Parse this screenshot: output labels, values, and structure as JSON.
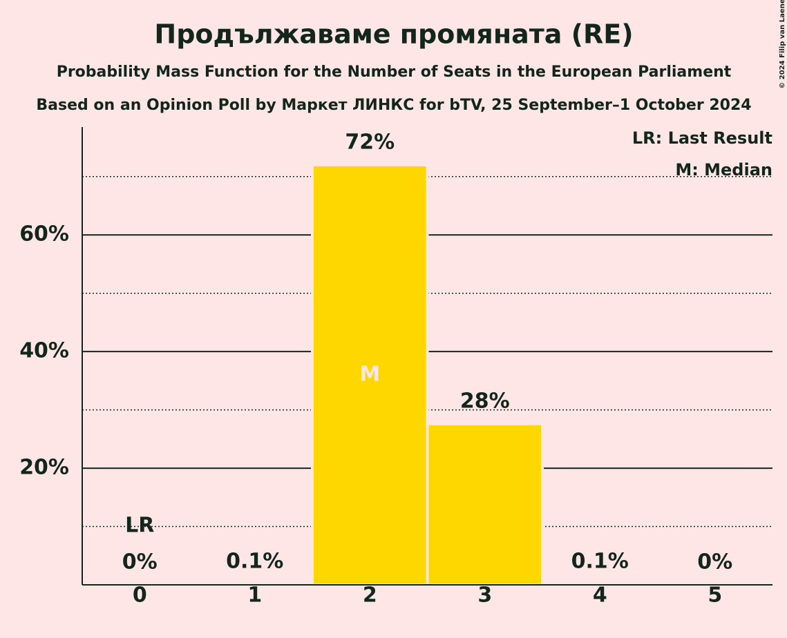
{
  "chart_data": {
    "type": "bar",
    "title": "Продължаваме промяната (RE)",
    "subtitle": "Probability Mass Function for the Number of Seats in the European Parliament",
    "subtitle2": "Based on an Opinion Poll by Маркет ЛИНКС for bTV, 25 September–1 October 2024",
    "copyright": "© 2024 Filip van Laenen",
    "categories": [
      "0",
      "1",
      "2",
      "3",
      "4",
      "5"
    ],
    "values": [
      0,
      0.1,
      72,
      27.6,
      0.1,
      0
    ],
    "value_labels": [
      "0%",
      "0.1%",
      "72%",
      "28%",
      "0.1%",
      "0%"
    ],
    "color": "#ffd700",
    "ylim": [
      0,
      78.5
    ],
    "yticks": [
      {
        "value": 20,
        "label": "20%"
      },
      {
        "value": 40,
        "label": "40%"
      },
      {
        "value": 60,
        "label": "60%"
      }
    ],
    "minor_yticks": [
      10,
      30,
      50,
      70
    ],
    "grid": true,
    "last_result": 0,
    "last_result_label": "LR",
    "median": 2,
    "median_label": "M",
    "legend": [
      "LR: Last Result",
      "M: Median"
    ],
    "legend_position": "top-right"
  }
}
